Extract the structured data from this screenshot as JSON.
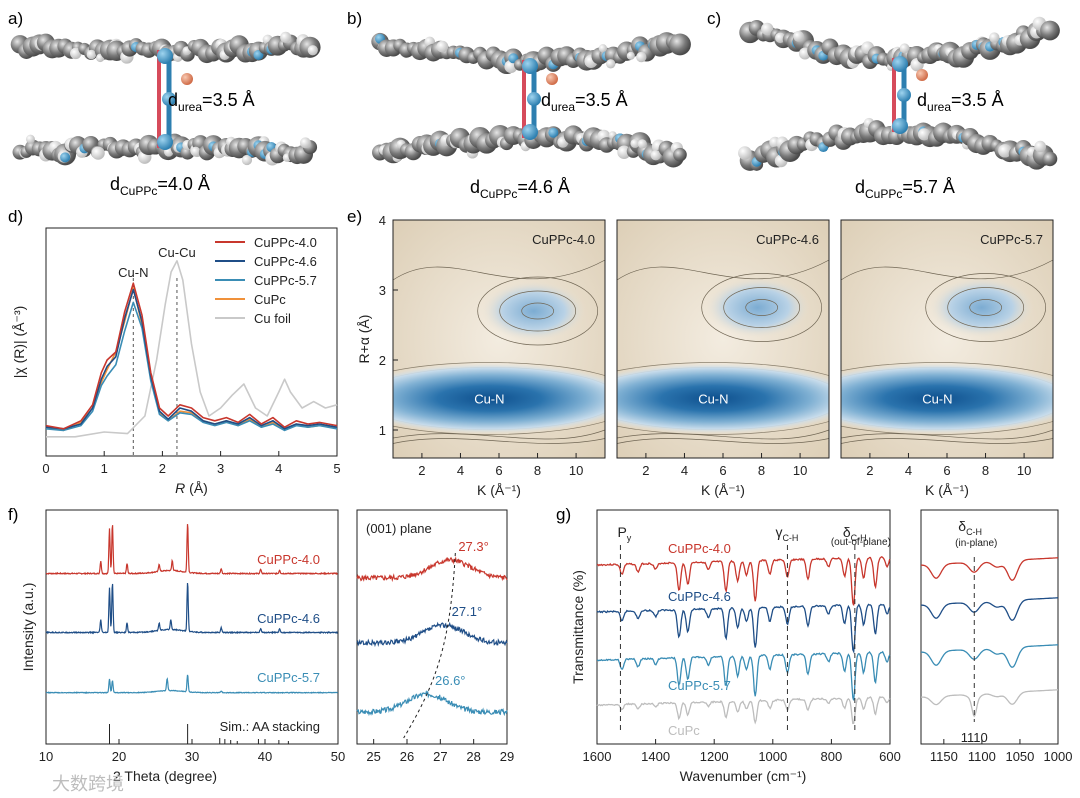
{
  "panels": {
    "a": {
      "label": "a)",
      "d_urea": "3.5 Å",
      "d_cuppc": "4.0 Å"
    },
    "b": {
      "label": "b)",
      "d_urea": "3.5 Å",
      "d_cuppc": "4.6 Å"
    },
    "c": {
      "label": "c)",
      "d_urea": "3.5 Å",
      "d_cuppc": "5.7 Å"
    },
    "d": {
      "label": "d)"
    },
    "e": {
      "label": "e)"
    },
    "f": {
      "label": "f)"
    },
    "g": {
      "label": "g)"
    }
  },
  "structure_labels": {
    "d_prefix": "d",
    "urea_sub": "urea",
    "cuppc_sub": "CuPPc",
    "eq": "="
  },
  "colors": {
    "cuppc40": "#c8372d",
    "cuppc46": "#1f4e87",
    "cuppc57": "#3a8db5",
    "cupc": "#f0913a",
    "cufoil": "#c9c9c9",
    "cupc_ir": "#bdbdbd"
  },
  "chart_data": [
    {
      "id": "d",
      "type": "line",
      "xlabel": "R (Å)",
      "xlabel_italic": "R",
      "xlabel_unit": " (Å)",
      "ylabel": "|χ (R)| (Å⁻³)",
      "xlim": [
        0,
        5
      ],
      "xticks": [
        "0",
        "1",
        "2",
        "3",
        "4",
        "5"
      ],
      "annotations": [
        {
          "text": "Cu-N",
          "x": 1.5
        },
        {
          "text": "Cu-Cu",
          "x": 2.25
        }
      ],
      "series": [
        {
          "name": "CuPPc-4.0",
          "x": [
            0,
            0.3,
            0.6,
            0.8,
            0.95,
            1.05,
            1.2,
            1.35,
            1.5,
            1.65,
            1.8,
            1.95,
            2.1,
            2.3,
            2.5,
            2.7,
            2.9,
            3.1,
            3.3,
            3.5,
            3.7,
            3.9,
            4.1,
            4.3,
            4.5,
            4.7,
            5
          ],
          "y": [
            0.09,
            0.07,
            0.12,
            0.22,
            0.42,
            0.5,
            0.55,
            0.8,
            0.98,
            0.78,
            0.42,
            0.2,
            0.15,
            0.22,
            0.2,
            0.14,
            0.12,
            0.14,
            0.11,
            0.16,
            0.1,
            0.14,
            0.08,
            0.12,
            0.1,
            0.11,
            0.09
          ]
        },
        {
          "name": "CuPPc-4.6",
          "x": [
            0,
            0.3,
            0.6,
            0.8,
            0.95,
            1.05,
            1.2,
            1.35,
            1.5,
            1.65,
            1.8,
            1.95,
            2.1,
            2.3,
            2.5,
            2.7,
            2.9,
            3.1,
            3.3,
            3.5,
            3.7,
            3.9,
            4.1,
            4.3,
            4.5,
            4.7,
            5
          ],
          "y": [
            0.08,
            0.07,
            0.1,
            0.2,
            0.38,
            0.46,
            0.52,
            0.76,
            0.94,
            0.74,
            0.4,
            0.18,
            0.13,
            0.2,
            0.18,
            0.12,
            0.1,
            0.12,
            0.1,
            0.14,
            0.09,
            0.12,
            0.07,
            0.1,
            0.09,
            0.1,
            0.08
          ]
        },
        {
          "name": "CuPPc-5.7",
          "x": [
            0,
            0.3,
            0.6,
            0.8,
            0.95,
            1.05,
            1.2,
            1.35,
            1.5,
            1.65,
            1.8,
            1.95,
            2.1,
            2.3,
            2.5,
            2.7,
            2.9,
            3.1,
            3.3,
            3.5,
            3.7,
            3.9,
            4.1,
            4.3,
            4.5,
            4.7,
            5
          ],
          "y": [
            0.07,
            0.06,
            0.09,
            0.18,
            0.34,
            0.4,
            0.47,
            0.68,
            0.86,
            0.7,
            0.37,
            0.16,
            0.12,
            0.17,
            0.16,
            0.11,
            0.09,
            0.11,
            0.09,
            0.12,
            0.08,
            0.1,
            0.06,
            0.09,
            0.08,
            0.09,
            0.07
          ]
        },
        {
          "name": "CuPc",
          "x": [
            0,
            0.3,
            0.6,
            0.8,
            0.95,
            1.05,
            1.2,
            1.35,
            1.5,
            1.65,
            1.8,
            1.95,
            2.1,
            2.3,
            2.5,
            2.7,
            2.9,
            3.1,
            3.3,
            3.5,
            3.7,
            3.9,
            4.1,
            4.3,
            4.5,
            4.7,
            5
          ],
          "y": [
            0.08,
            0.06,
            0.11,
            0.2,
            0.36,
            0.44,
            0.55,
            0.74,
            0.95,
            0.72,
            0.38,
            0.17,
            0.12,
            0.18,
            0.17,
            0.12,
            0.1,
            0.12,
            0.09,
            0.13,
            0.08,
            0.11,
            0.07,
            0.1,
            0.08,
            0.09,
            0.08
          ]
        },
        {
          "name": "Cu foil",
          "x": [
            0,
            0.5,
            1.0,
            1.4,
            1.7,
            1.9,
            2.05,
            2.15,
            2.25,
            2.35,
            2.5,
            2.65,
            2.8,
            3.0,
            3.2,
            3.4,
            3.6,
            3.8,
            4.0,
            4.1,
            4.2,
            4.4,
            4.6,
            4.8,
            5
          ],
          "y": [
            0.02,
            0.02,
            0.05,
            0.04,
            0.15,
            0.5,
            0.85,
            1.05,
            1.12,
            1.0,
            0.6,
            0.3,
            0.15,
            0.2,
            0.28,
            0.35,
            0.2,
            0.15,
            0.3,
            0.38,
            0.3,
            0.2,
            0.24,
            0.2,
            0.22
          ]
        }
      ]
    },
    {
      "id": "e",
      "type": "heatmap",
      "xlabel": "K (Å⁻¹)",
      "ylabel": "R+α (Å)",
      "xlim": [
        0.5,
        11.5
      ],
      "ylim": [
        0.6,
        4
      ],
      "xticks": [
        "2",
        "4",
        "6",
        "8",
        "10"
      ],
      "yticks": [
        "1",
        "2",
        "3",
        "4"
      ],
      "maps": [
        {
          "title": "CuPPc-4.0",
          "peak_label": "Cu-N",
          "main_peak": {
            "k": 5.5,
            "r": 1.45
          },
          "secondary_peak": {
            "k": 7.8,
            "r": 2.7
          }
        },
        {
          "title": "CuPPc-4.6",
          "peak_label": "Cu-N",
          "main_peak": {
            "k": 5.5,
            "r": 1.45
          },
          "secondary_peak": {
            "k": 7.8,
            "r": 2.75
          }
        },
        {
          "title": "CuPPc-5.7",
          "peak_label": "Cu-N",
          "main_peak": {
            "k": 5.5,
            "r": 1.45
          },
          "secondary_peak": {
            "k": 7.8,
            "r": 2.75
          }
        }
      ]
    },
    {
      "id": "f",
      "type": "line",
      "xlabel": "2 Theta (degree)",
      "ylabel": "Intensity (a.u.)",
      "xlim": [
        10,
        50
      ],
      "xticks": [
        "10",
        "20",
        "30",
        "40",
        "50"
      ],
      "series": [
        {
          "name": "CuPPc-4.0",
          "peaks": [
            [
              17.5,
              0.25
            ],
            [
              18.7,
              0.9
            ],
            [
              19.1,
              1.0
            ],
            [
              21.1,
              0.2
            ],
            [
              25.5,
              0.15
            ],
            [
              27.3,
              0.2
            ],
            [
              29.4,
              1.0
            ],
            [
              34,
              0.1
            ],
            [
              39.4,
              0.08
            ],
            [
              42,
              0.07
            ]
          ]
        },
        {
          "name": "CuPPc-4.6",
          "peaks": [
            [
              17.5,
              0.25
            ],
            [
              18.7,
              0.9
            ],
            [
              19.1,
              1.0
            ],
            [
              21.1,
              0.2
            ],
            [
              25.5,
              0.15
            ],
            [
              27.1,
              0.2
            ],
            [
              29.4,
              1.0
            ],
            [
              34,
              0.1
            ],
            [
              39.4,
              0.08
            ],
            [
              42,
              0.07
            ]
          ]
        },
        {
          "name": "CuPPc-5.7",
          "peaks": [
            [
              18.7,
              0.4
            ],
            [
              19.1,
              0.35
            ],
            [
              26.6,
              0.35
            ],
            [
              29.4,
              0.5
            ],
            [
              34,
              0.05
            ]
          ]
        }
      ],
      "reference_label": "Sim.: AA stacking",
      "reference_sticks": [
        [
          18.7,
          1.0
        ],
        [
          29.4,
          1.0
        ],
        [
          33.8,
          0.3
        ],
        [
          34.5,
          0.25
        ],
        [
          35.3,
          0.2
        ],
        [
          36.2,
          0.15
        ],
        [
          39.1,
          0.25
        ],
        [
          41.9,
          0.2
        ],
        [
          43.2,
          0.15
        ]
      ]
    },
    {
      "id": "f-inset",
      "type": "line",
      "title": "(001) plane",
      "xlim": [
        24.5,
        29
      ],
      "xticks": [
        "25",
        "26",
        "27",
        "28",
        "29"
      ],
      "peaks": [
        {
          "series": "CuPPc-4.0",
          "label": "27.3°",
          "x": 27.3
        },
        {
          "series": "CuPPc-4.6",
          "label": "27.1°",
          "x": 27.1
        },
        {
          "series": "CuPPc-5.7",
          "label": "26.6°",
          "x": 26.6
        }
      ]
    },
    {
      "id": "g",
      "type": "line",
      "xlabel": "Wavenumber (cm⁻¹)",
      "ylabel": "Transmittance (%)",
      "xlim": [
        1600,
        600
      ],
      "xticks": [
        "1600",
        "1400",
        "1200",
        "1000",
        "800",
        "600"
      ],
      "series_labels": [
        "CuPPc-4.0",
        "CuPPc-4.6",
        "CuPPc-5.7",
        "CuPc"
      ],
      "annotations": [
        {
          "text": "Py",
          "x": 1520
        },
        {
          "text": "γC-H",
          "x": 950
        },
        {
          "text": "δC-H",
          "note": "(out-of-plane)",
          "x": 720
        }
      ]
    },
    {
      "id": "g-inset",
      "type": "line",
      "xlim": [
        1180,
        1000
      ],
      "xticks": [
        "1150",
        "1100",
        "1050",
        "1000"
      ],
      "annotations": [
        {
          "text": "δC-H",
          "note": "(in-plane)",
          "x": 1110
        },
        {
          "text": "1110",
          "x": 1110
        }
      ]
    }
  ],
  "watermark": "大数跨境"
}
